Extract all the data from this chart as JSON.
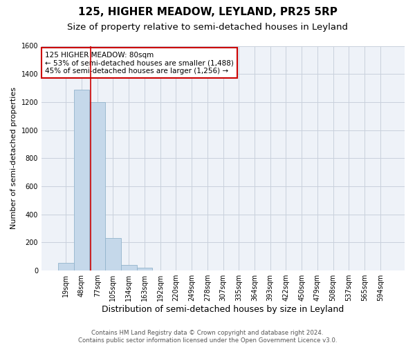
{
  "title": "125, HIGHER MEADOW, LEYLAND, PR25 5RP",
  "subtitle": "Size of property relative to semi-detached houses in Leyland",
  "xlabel": "Distribution of semi-detached houses by size in Leyland",
  "ylabel": "Number of semi-detached properties",
  "footnote": "Contains HM Land Registry data © Crown copyright and database right 2024.\nContains public sector information licensed under the Open Government Licence v3.0.",
  "bins": [
    "19sqm",
    "48sqm",
    "77sqm",
    "105sqm",
    "134sqm",
    "163sqm",
    "192sqm",
    "220sqm",
    "249sqm",
    "278sqm",
    "307sqm",
    "335sqm",
    "364sqm",
    "393sqm",
    "422sqm",
    "450sqm",
    "479sqm",
    "508sqm",
    "537sqm",
    "565sqm",
    "594sqm"
  ],
  "values": [
    55,
    1290,
    1200,
    230,
    40,
    20,
    0,
    0,
    0,
    0,
    0,
    0,
    0,
    0,
    0,
    0,
    0,
    0,
    0,
    0,
    0
  ],
  "bar_color": "#c5d8ea",
  "bar_edgecolor": "#92b4cc",
  "vline_x_index": 1.575,
  "vline_color": "#cc0000",
  "annotation_text": "125 HIGHER MEADOW: 80sqm\n← 53% of semi-detached houses are smaller (1,488)\n45% of semi-detached houses are larger (1,256) →",
  "annotation_box_edgecolor": "#cc0000",
  "ylim": [
    0,
    1600
  ],
  "yticks": [
    0,
    200,
    400,
    600,
    800,
    1000,
    1200,
    1400,
    1600
  ],
  "grid_color": "#c8d0dc",
  "bg_color": "#eef2f8",
  "title_fontsize": 11,
  "subtitle_fontsize": 9.5,
  "xlabel_fontsize": 9,
  "ylabel_fontsize": 8,
  "tick_fontsize": 7,
  "annot_fontsize": 7.5
}
